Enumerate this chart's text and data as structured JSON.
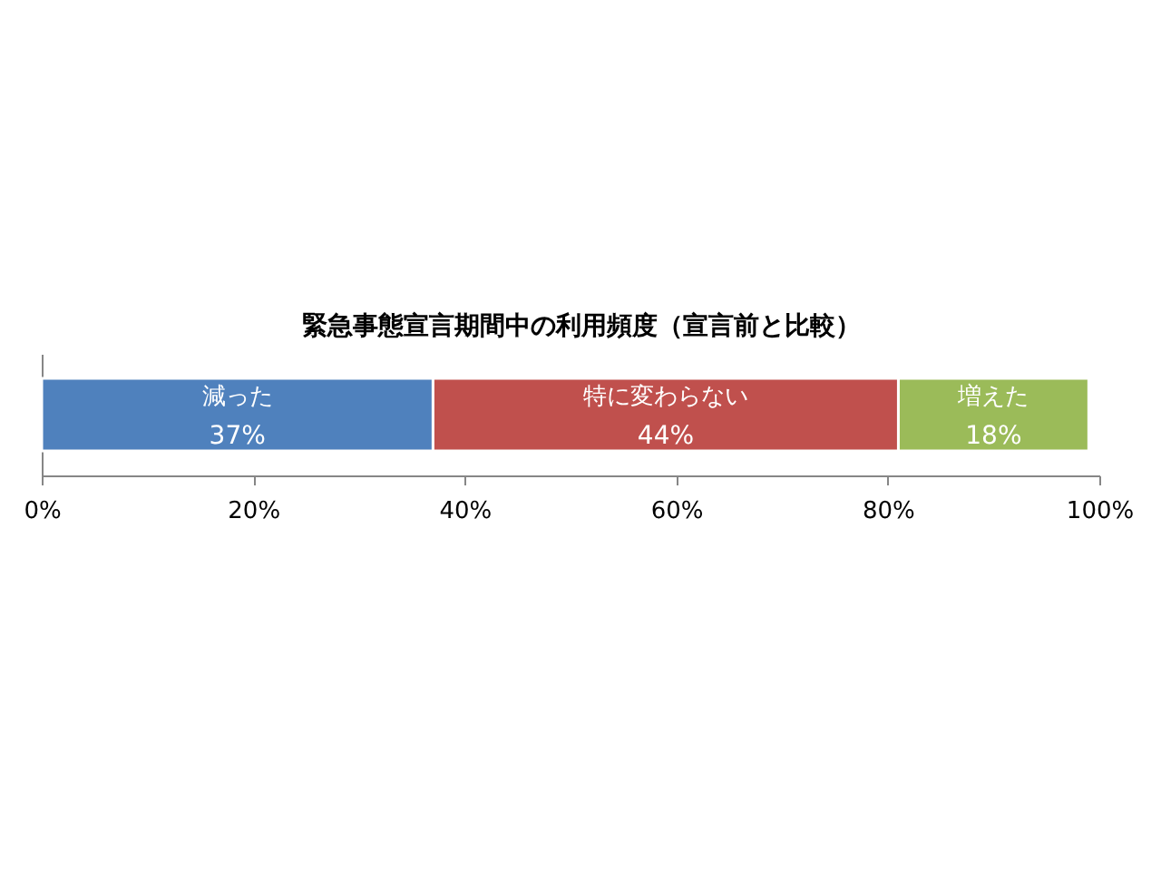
{
  "chart_data": {
    "type": "bar",
    "title": "緊急事態宣言期間中の利用頻度（宣言前と比較）",
    "categories": [
      null
    ],
    "orientation": "horizontal",
    "stacked": true,
    "series": [
      {
        "name": "減った",
        "color": "#4f81bd",
        "values": [
          37
        ],
        "value_labels": [
          "37%"
        ]
      },
      {
        "name": "特に変わらない",
        "color": "#c0504d",
        "values": [
          44
        ],
        "value_labels": [
          "44%"
        ]
      },
      {
        "name": "増えた",
        "color": "#9bbb59",
        "values": [
          18
        ],
        "value_labels": [
          "18%"
        ]
      }
    ],
    "xlim": [
      0,
      100
    ],
    "xticks": [
      {
        "value": 0,
        "label": "0%"
      },
      {
        "value": 20,
        "label": "20%"
      },
      {
        "value": 40,
        "label": "40%"
      },
      {
        "value": 60,
        "label": "60%"
      },
      {
        "value": 80,
        "label": "80%"
      },
      {
        "value": 100,
        "label": "100%"
      }
    ],
    "grid": false,
    "legend": false,
    "tick_labels": "x"
  }
}
